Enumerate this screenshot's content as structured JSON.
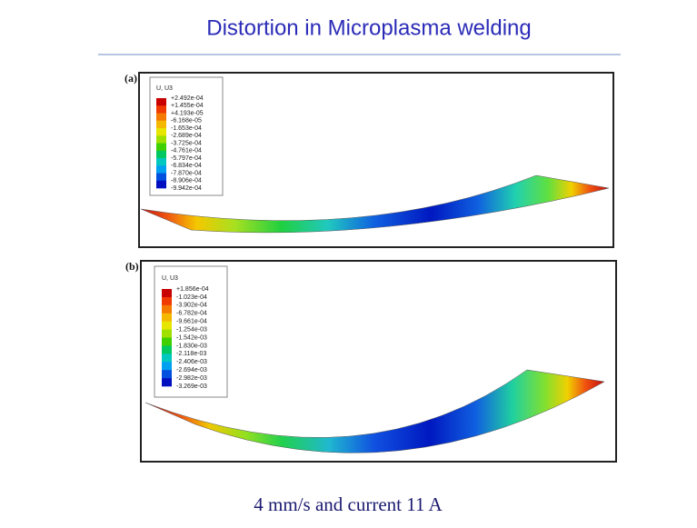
{
  "title": "Distortion in Microplasma welding",
  "panels": [
    {
      "label": "(a)",
      "legend_title": "U, U3",
      "legend": [
        "+2.492e-04",
        "+1.455e-04",
        "+4.193e-05",
        "-6.168e-05",
        "-1.653e-04",
        "-2.689e-04",
        "-3.725e-04",
        "-4.761e-04",
        "-5.797e-04",
        "-6.834e-04",
        "-7.870e-04",
        "-8.906e-04",
        "-9.942e-04"
      ]
    },
    {
      "label": "(b)",
      "legend_title": "U, U3",
      "legend": [
        "+1.856e-04",
        "-1.023e-04",
        "-3.902e-04",
        "-6.782e-04",
        "-9.661e-04",
        "-1.254e-03",
        "-1.542e-03",
        "-1.830e-03",
        "-2.118e-03",
        "-2.406e-03",
        "-2.694e-03",
        "-2.982e-03",
        "-3.269e-03"
      ]
    }
  ],
  "caption": "4 mm/s and current 11 A"
}
